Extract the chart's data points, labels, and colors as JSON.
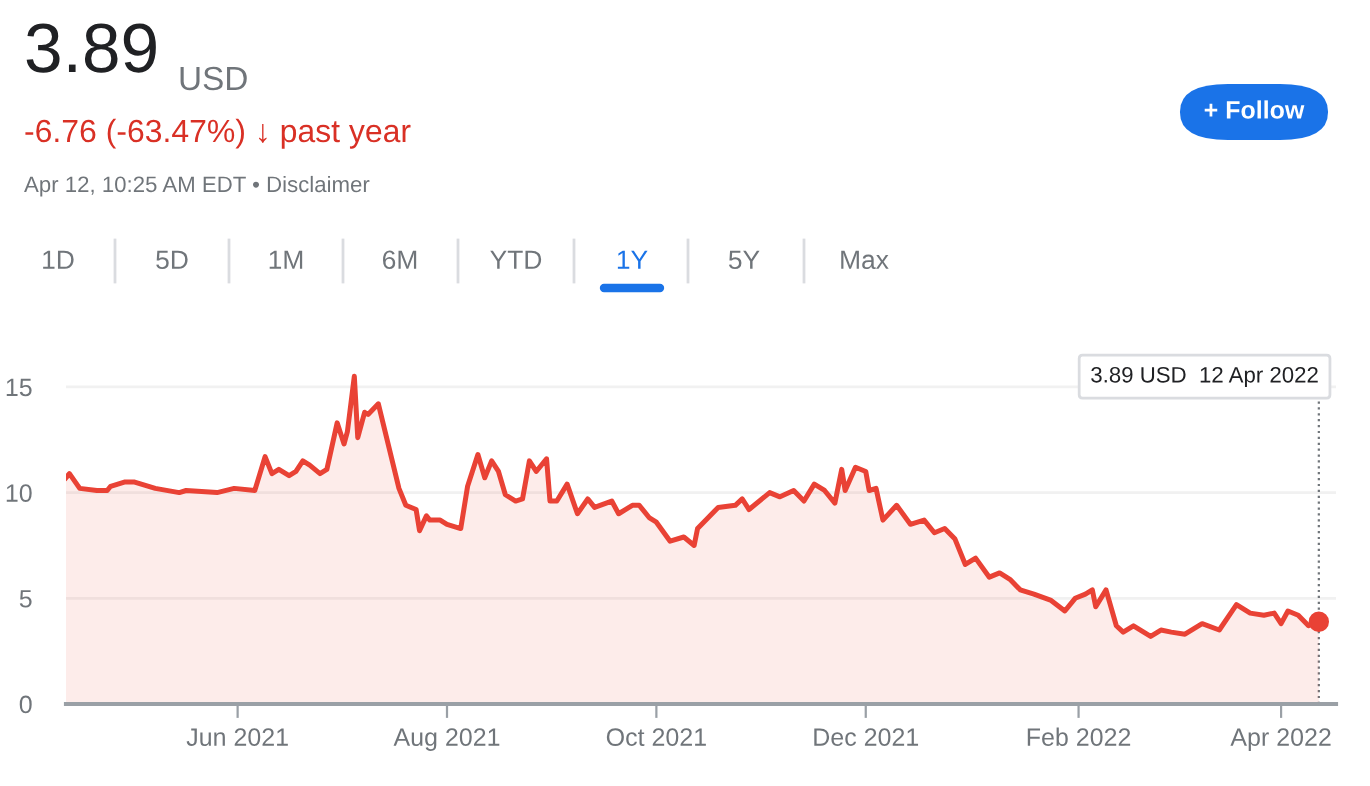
{
  "chart_data": {
    "type": "area",
    "title": "3.89",
    "subtitle": "-6.76 (-63.47%) ↓ past year",
    "annotations": [
      "USD",
      "Apr 12, 10:25 AM EDT • Disclaimer",
      "1D",
      "5D",
      "1M",
      "6M",
      "YTD",
      "1Y",
      "5Y",
      "Max",
      "+ Follow"
    ],
    "series": [
      {
        "color": "#e94235",
        "x": [
          "2021-04-12",
          "2021-04-13",
          "2021-04-16",
          "2021-04-21",
          "2021-04-24",
          "2021-04-25",
          "2021-04-29",
          "2021-05-02",
          "2021-05-08",
          "2021-05-15",
          "2021-05-17",
          "2021-05-26",
          "2021-05-31",
          "2021-06-06",
          "2021-06-09",
          "2021-06-11",
          "2021-06-13",
          "2021-06-16",
          "2021-06-18",
          "2021-06-20",
          "2021-06-22",
          "2021-06-25",
          "2021-06-27",
          "2021-06-30",
          "2021-07-02",
          "2021-07-03",
          "2021-07-05",
          "2021-07-06",
          "2021-07-08",
          "2021-07-09",
          "2021-07-12",
          "2021-07-15",
          "2021-07-18",
          "2021-07-20",
          "2021-07-23",
          "2021-07-24",
          "2021-07-26",
          "2021-07-27",
          "2021-07-30",
          "2021-08-01",
          "2021-08-05",
          "2021-08-07",
          "2021-08-10",
          "2021-08-12",
          "2021-08-14",
          "2021-08-16",
          "2021-08-18",
          "2021-08-21",
          "2021-08-23",
          "2021-08-25",
          "2021-08-27",
          "2021-08-30",
          "2021-08-31",
          "2021-09-02",
          "2021-09-05",
          "2021-09-08",
          "2021-09-11",
          "2021-09-13",
          "2021-09-18",
          "2021-09-20",
          "2021-09-24",
          "2021-09-26",
          "2021-09-29",
          "2021-10-01",
          "2021-10-05",
          "2021-10-09",
          "2021-10-12",
          "2021-10-13",
          "2021-10-16",
          "2021-10-19",
          "2021-10-24",
          "2021-10-26",
          "2021-10-28",
          "2021-11-03",
          "2021-11-06",
          "2021-11-10",
          "2021-11-13",
          "2021-11-16",
          "2021-11-19",
          "2021-11-22",
          "2021-11-24",
          "2021-11-25",
          "2021-11-28",
          "2021-12-01",
          "2021-12-02",
          "2021-12-04",
          "2021-12-06",
          "2021-12-10",
          "2021-12-14",
          "2021-12-18",
          "2021-12-21",
          "2021-12-24",
          "2021-12-27",
          "2021-12-30",
          "2022-01-02",
          "2022-01-06",
          "2022-01-09",
          "2022-01-12",
          "2022-01-15",
          "2022-01-19",
          "2022-01-24",
          "2022-01-28",
          "2022-01-31",
          "2022-02-03",
          "2022-02-05",
          "2022-02-06",
          "2022-02-09",
          "2022-02-12",
          "2022-02-14",
          "2022-02-17",
          "2022-02-22",
          "2022-02-25",
          "2022-02-28",
          "2022-03-04",
          "2022-03-09",
          "2022-03-14",
          "2022-03-19",
          "2022-03-23",
          "2022-03-27",
          "2022-03-30",
          "2022-04-01",
          "2022-04-03",
          "2022-04-06",
          "2022-04-09",
          "2022-04-12"
        ],
        "values": [
          10.7,
          10.9,
          10.2,
          10.1,
          10.1,
          10.3,
          10.5,
          10.5,
          10.2,
          10.0,
          10.1,
          10.0,
          10.2,
          10.1,
          11.7,
          10.9,
          11.1,
          10.8,
          11.0,
          11.5,
          11.3,
          10.9,
          11.1,
          13.3,
          12.3,
          12.9,
          15.5,
          12.6,
          13.8,
          13.7,
          14.2,
          12.2,
          10.2,
          9.4,
          9.2,
          8.2,
          8.9,
          8.7,
          8.7,
          8.5,
          8.3,
          10.3,
          11.8,
          10.7,
          11.5,
          11.0,
          9.9,
          9.6,
          9.7,
          11.5,
          11.0,
          11.6,
          9.6,
          9.6,
          10.4,
          9.0,
          9.7,
          9.3,
          9.6,
          9.0,
          9.4,
          9.4,
          8.8,
          8.6,
          7.7,
          7.9,
          7.5,
          8.3,
          8.8,
          9.3,
          9.4,
          9.7,
          9.2,
          10.0,
          9.8,
          10.1,
          9.6,
          10.4,
          10.1,
          9.5,
          11.1,
          10.1,
          11.2,
          11.0,
          10.1,
          10.2,
          8.7,
          9.4,
          8.5,
          8.7,
          8.1,
          8.3,
          7.8,
          6.6,
          6.9,
          6.0,
          6.2,
          5.9,
          5.4,
          5.2,
          4.9,
          4.4,
          5.0,
          5.2,
          5.4,
          4.6,
          5.4,
          3.7,
          3.4,
          3.7,
          3.2,
          3.5,
          3.4,
          3.3,
          3.8,
          3.5,
          4.7,
          4.3,
          4.2,
          4.3,
          3.8,
          4.4,
          4.2,
          3.7,
          3.89
        ]
      },
      {
        "type": "scatter",
        "marker": "circle",
        "color": "#e94235",
        "x": [
          "2022-04-12"
        ],
        "values": [
          3.89
        ]
      }
    ],
    "xlim": [
      "2021-04-12",
      "2022-04-17"
    ],
    "xticks": [
      {
        "value": "2021-06-01",
        "label": "Jun 2021"
      },
      {
        "value": "2021-08-01",
        "label": "Aug 2021"
      },
      {
        "value": "2021-10-01",
        "label": "Oct 2021"
      },
      {
        "value": "2021-12-01",
        "label": "Dec 2021"
      },
      {
        "value": "2022-02-01",
        "label": "Feb 2022"
      },
      {
        "value": "2022-04-01",
        "label": "Apr 2022"
      }
    ],
    "ylim": [
      0,
      15.8
    ],
    "yticks": [
      0,
      5,
      10,
      15
    ],
    "grid": "y",
    "ref_lines": [
      {
        "axis": "x",
        "value": "2022-04-12",
        "label": "3.89 USD  12 Apr 2022",
        "color": "#70757a",
        "line_style": "dotted"
      }
    ]
  }
}
